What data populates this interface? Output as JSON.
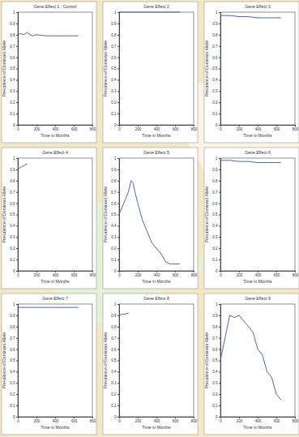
{
  "chart_data": [
    {
      "type": "line",
      "title": "Gene Effect 1 : Control",
      "x_label": "Time in Months",
      "y_label": "Prevalence of Dominant Allele",
      "x": [
        0,
        30,
        60,
        100,
        130,
        160,
        200,
        300,
        400,
        500,
        650
      ],
      "values": [
        0.8,
        0.81,
        0.8,
        0.82,
        0.8,
        0.79,
        0.8,
        0.79,
        0.79,
        0.79,
        0.79
      ],
      "color": "#3a55a8",
      "xlim": [
        0,
        800
      ],
      "ylim": [
        0,
        1
      ],
      "xticks": [
        0,
        200,
        400,
        600,
        800
      ],
      "yticks": [
        0,
        0.1,
        0.2,
        0.3,
        0.4,
        0.5,
        0.6,
        0.7,
        0.8,
        0.9,
        1
      ]
    },
    {
      "type": "line",
      "title": "Gene Effect 2",
      "x_label": "Time in Months",
      "y_label": "Prevalence of Dominant Allele",
      "x": [
        0,
        650
      ],
      "values": [
        1,
        1
      ],
      "color": "#3a55a8",
      "xlim": [
        0,
        800
      ],
      "ylim": [
        0,
        1
      ],
      "xticks": [
        0,
        200,
        400,
        600,
        800
      ],
      "yticks": [
        0,
        0.1,
        0.2,
        0.3,
        0.4,
        0.5,
        0.6,
        0.7,
        0.8,
        0.9,
        1
      ]
    },
    {
      "type": "line",
      "title": "Gene Effect 3",
      "x_label": "Time in Months",
      "y_label": "Prevalence of Dominant Allele",
      "x": [
        0,
        100,
        200,
        300,
        400,
        500,
        650
      ],
      "values": [
        0.97,
        0.97,
        0.96,
        0.96,
        0.95,
        0.95,
        0.95
      ],
      "color": "#3a55a8",
      "xlim": [
        0,
        800
      ],
      "ylim": [
        0,
        1
      ],
      "xticks": [
        0,
        200,
        400,
        600,
        800
      ],
      "yticks": [
        0,
        0.1,
        0.2,
        0.3,
        0.4,
        0.5,
        0.6,
        0.7,
        0.8,
        0.9,
        1
      ]
    },
    {
      "type": "line",
      "title": "Gene Effect 4",
      "x_label": "Time in Months",
      "y_label": "Prevalence of Dominant Allele",
      "x": [
        0,
        30,
        60,
        100
      ],
      "values": [
        0.9,
        0.92,
        0.93,
        0.95
      ],
      "color": "#3a55a8",
      "xlim": [
        0,
        800
      ],
      "ylim": [
        0,
        1
      ],
      "xticks": [
        0,
        200,
        400,
        600,
        800
      ],
      "yticks": [
        0,
        0.1,
        0.2,
        0.3,
        0.4,
        0.5,
        0.6,
        0.7,
        0.8,
        0.9,
        1
      ]
    },
    {
      "type": "line",
      "title": "Gene Effect 5",
      "x_label": "Time in Months",
      "y_label": "Prevalence of Dominant Allele",
      "x": [
        0,
        50,
        100,
        130,
        150,
        170,
        200,
        250,
        300,
        350,
        400,
        450,
        500,
        550,
        650
      ],
      "values": [
        0.5,
        0.6,
        0.7,
        0.8,
        0.78,
        0.7,
        0.6,
        0.45,
        0.35,
        0.25,
        0.2,
        0.15,
        0.08,
        0.06,
        0.06
      ],
      "color": "#3a55a8",
      "xlim": [
        0,
        800
      ],
      "ylim": [
        0,
        1
      ],
      "xticks": [
        0,
        200,
        400,
        600,
        800
      ],
      "yticks": [
        0,
        0.1,
        0.2,
        0.3,
        0.4,
        0.5,
        0.6,
        0.7,
        0.8,
        0.9,
        1
      ]
    },
    {
      "type": "line",
      "title": "Gene Effect 6",
      "x_label": "Time in Months",
      "y_label": "Prevalence of Dominant Allele",
      "x": [
        0,
        100,
        200,
        300,
        400,
        500,
        650
      ],
      "values": [
        0.98,
        0.98,
        0.97,
        0.97,
        0.96,
        0.96,
        0.96
      ],
      "color": "#3a55a8",
      "xlim": [
        0,
        800
      ],
      "ylim": [
        0,
        1
      ],
      "xticks": [
        0,
        200,
        400,
        600,
        800
      ],
      "yticks": [
        0,
        0.1,
        0.2,
        0.3,
        0.4,
        0.5,
        0.6,
        0.7,
        0.8,
        0.9,
        1
      ]
    },
    {
      "type": "line",
      "title": "Gene Effect 7",
      "x_label": "Time in Months",
      "y_label": "Prevalence of Dominant Allele",
      "x": [
        0,
        100,
        200,
        300,
        400,
        500,
        650
      ],
      "values": [
        0.97,
        0.97,
        0.97,
        0.97,
        0.97,
        0.97,
        0.97
      ],
      "color": "#3a55a8",
      "xlim": [
        0,
        800
      ],
      "ylim": [
        0,
        1
      ],
      "xticks": [
        0,
        200,
        400,
        600,
        800
      ],
      "yticks": [
        0,
        0.1,
        0.2,
        0.3,
        0.4,
        0.5,
        0.6,
        0.7,
        0.8,
        0.9,
        1
      ]
    },
    {
      "type": "line",
      "title": "Gene Effect 8",
      "x_label": "Time in Months",
      "y_label": "Prevalence of Dominant Allele",
      "x": [
        0,
        30,
        60,
        100
      ],
      "values": [
        0.9,
        0.91,
        0.91,
        0.92
      ],
      "color": "#3a55a8",
      "xlim": [
        0,
        800
      ],
      "ylim": [
        0,
        1
      ],
      "xticks": [
        0,
        200,
        400,
        600,
        800
      ],
      "yticks": [
        0,
        0.1,
        0.2,
        0.3,
        0.4,
        0.5,
        0.6,
        0.7,
        0.8,
        0.9,
        1
      ]
    },
    {
      "type": "line",
      "title": "Gene Effect 9",
      "x_label": "Time in Months",
      "y_label": "Prevalence of Dominant Allele",
      "x": [
        0,
        50,
        100,
        150,
        200,
        250,
        300,
        350,
        400,
        450,
        500,
        550,
        600,
        650
      ],
      "values": [
        0.5,
        0.7,
        0.9,
        0.88,
        0.9,
        0.85,
        0.8,
        0.75,
        0.6,
        0.55,
        0.4,
        0.35,
        0.2,
        0.15
      ],
      "color": "#3a55a8",
      "xlim": [
        0,
        800
      ],
      "ylim": [
        0,
        1
      ],
      "xticks": [
        0,
        200,
        400,
        600,
        800
      ],
      "yticks": [
        0,
        0.1,
        0.2,
        0.3,
        0.4,
        0.5,
        0.6,
        0.7,
        0.8,
        0.9,
        1
      ]
    }
  ]
}
